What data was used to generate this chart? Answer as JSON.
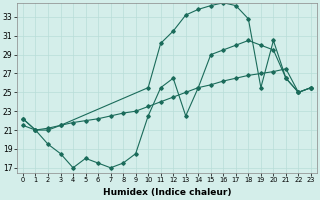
{
  "xlabel": "Humidex (Indice chaleur)",
  "background_color": "#d4eeea",
  "grid_color": "#b8ddd8",
  "line_color": "#1a6b5a",
  "xlim": [
    -0.5,
    23.5
  ],
  "ylim": [
    16.5,
    34.5
  ],
  "yticks": [
    17,
    19,
    21,
    23,
    25,
    27,
    29,
    31,
    33
  ],
  "xticks": [
    0,
    1,
    2,
    3,
    4,
    5,
    6,
    7,
    8,
    9,
    10,
    11,
    12,
    13,
    14,
    15,
    16,
    17,
    18,
    19,
    20,
    21,
    22,
    23
  ],
  "curve1_x": [
    0,
    1,
    2,
    3,
    10,
    11,
    12,
    13,
    14,
    15,
    16,
    17,
    18,
    19,
    20,
    21,
    22,
    23
  ],
  "curve1_y": [
    22.2,
    21.0,
    21.0,
    21.5,
    25.5,
    30.2,
    31.5,
    33.2,
    33.8,
    34.2,
    34.5,
    34.2,
    32.8,
    25.5,
    30.5,
    26.5,
    25.0,
    25.5
  ],
  "curve2_x": [
    0,
    1,
    2,
    3,
    4,
    5,
    6,
    7,
    8,
    9,
    10,
    11,
    12,
    13,
    14,
    15,
    16,
    17,
    18,
    19,
    20,
    21,
    22,
    23
  ],
  "curve2_y": [
    21.5,
    21.0,
    21.2,
    21.5,
    21.8,
    22.0,
    22.2,
    22.5,
    22.8,
    23.0,
    23.5,
    24.0,
    24.5,
    25.0,
    25.5,
    25.8,
    26.2,
    26.5,
    26.8,
    27.0,
    27.2,
    27.5,
    25.0,
    25.5
  ],
  "curve3_x": [
    0,
    1,
    2,
    3,
    4,
    5,
    6,
    7,
    8,
    9,
    10,
    11,
    12,
    13,
    14,
    15,
    16,
    17,
    18,
    19,
    20,
    21,
    22,
    23
  ],
  "curve3_y": [
    22.2,
    21.0,
    19.5,
    18.5,
    17.0,
    18.0,
    17.5,
    17.0,
    17.5,
    18.5,
    22.5,
    25.5,
    26.5,
    22.5,
    25.5,
    29.0,
    29.5,
    30.0,
    30.5,
    30.0,
    29.5,
    26.5,
    25.0,
    25.5
  ]
}
